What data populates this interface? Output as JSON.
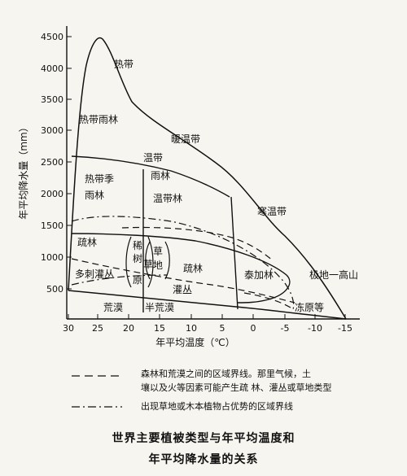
{
  "chart_data": {
    "type": "diagram",
    "ylabel": "年平均降水量（mm）",
    "xlabel": "年平均温度（℃）",
    "y_ticks": [
      "500",
      "1000",
      "1500",
      "2000",
      "2500",
      "3000",
      "3500",
      "4000",
      "4500"
    ],
    "x_ticks": [
      "30",
      "25",
      "20",
      "15",
      "10",
      "5",
      "0",
      "-5",
      "-10",
      "-15"
    ],
    "regions": [
      {
        "label": "热带"
      },
      {
        "label": "热带雨林"
      },
      {
        "label": "暖温带"
      },
      {
        "label": "温带"
      },
      {
        "label": "雨林"
      },
      {
        "label": "热带季"
      },
      {
        "label": "雨林"
      },
      {
        "label": "温带林"
      },
      {
        "label": "寒温带"
      },
      {
        "label": "疏林"
      },
      {
        "label": "稀"
      },
      {
        "label": "树"
      },
      {
        "label": "草"
      },
      {
        "label": "原"
      },
      {
        "label": "草"
      },
      {
        "label": "地"
      },
      {
        "label": "多刺灌丛"
      },
      {
        "label": "疏林"
      },
      {
        "label": "泰加林"
      },
      {
        "label": "极地一高山"
      },
      {
        "label": "灌丛"
      },
      {
        "label": "荒漠"
      },
      {
        "label": "半荒漠"
      },
      {
        "label": "冻原等"
      }
    ]
  },
  "legend": {
    "dashed_line_1": "森林和荒漠之间的区域界线。那里气候，土",
    "dashed_line_2": "壤以及火等因素可能产生疏 林、灌丛或草地类型",
    "dashdot_line": "出现草地或木本植物占优势的区域界线"
  },
  "caption": {
    "line1": "世界主要植被类型与年平均温度和",
    "line2": "年平均降水量的关系"
  }
}
